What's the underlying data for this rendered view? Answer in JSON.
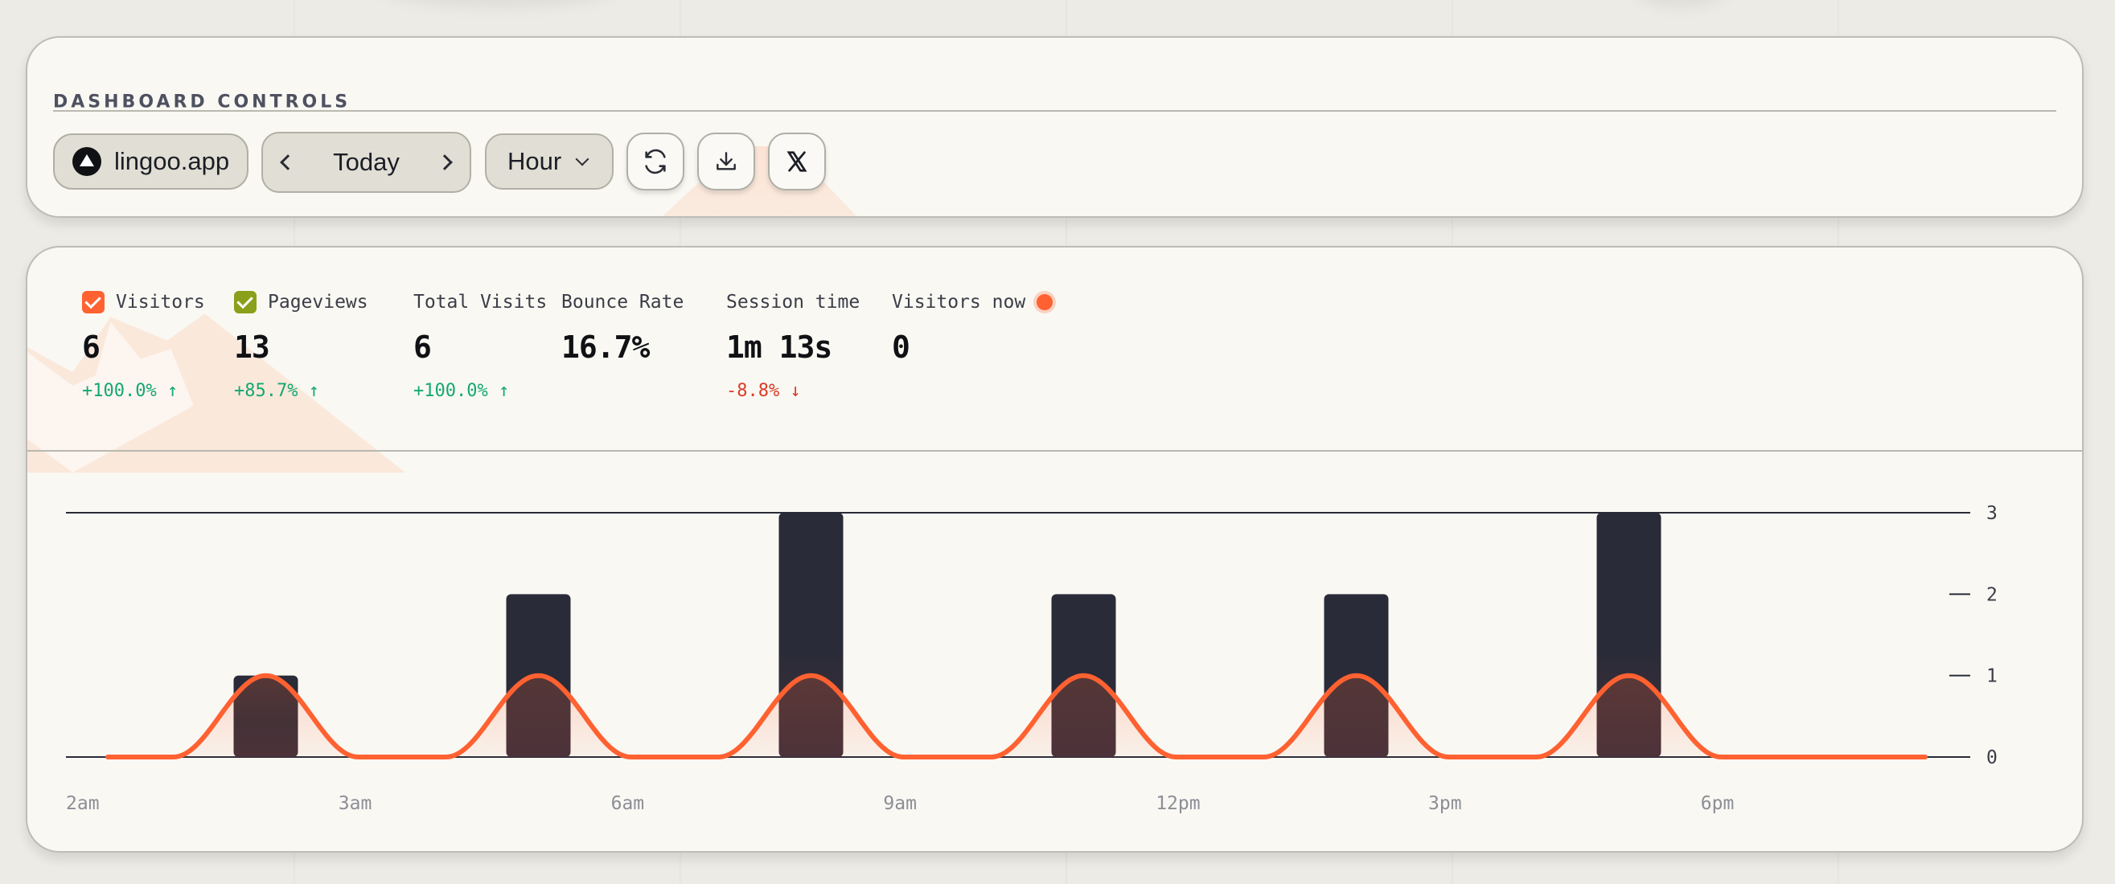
{
  "controls": {
    "title": "DASHBOARD CONTROLS",
    "site": "lingoo.app",
    "date_label": "Today",
    "interval": "Hour",
    "icons": {
      "site": "triangle-logo-icon",
      "prev": "chevron-left-icon",
      "next": "chevron-right-icon",
      "interval": "chevron-down-icon",
      "refresh": "refresh-icon",
      "download": "download-icon",
      "share": "x-logo-icon"
    }
  },
  "stats": [
    {
      "label": "Visitors",
      "value": "6",
      "delta": "+100.0%",
      "trend": "up",
      "checkbox": true,
      "checkbox_color": "#ff6131"
    },
    {
      "label": "Pageviews",
      "value": "13",
      "delta": "+85.7%",
      "trend": "up",
      "checkbox": true,
      "checkbox_color": "#8aa01a"
    },
    {
      "label": "Total Visits",
      "value": "6",
      "delta": "+100.0%",
      "trend": "up"
    },
    {
      "label": "Bounce Rate",
      "value": "16.7%"
    },
    {
      "label": "Session time",
      "value": "1m 13s",
      "delta": "-8.8%",
      "trend": "down"
    },
    {
      "label": "Visitors now",
      "value": "0",
      "live": true
    }
  ],
  "chart_data": {
    "type": "bar",
    "x_tick_labels": [
      "2am",
      "3am",
      "6am",
      "9am",
      "12pm",
      "3pm",
      "6pm"
    ],
    "y_ticks": [
      0,
      1,
      2,
      3
    ],
    "ylim": [
      0,
      3
    ],
    "grid": false,
    "y_axis_position": "right",
    "series": [
      {
        "type": "bar",
        "color": "#292b38",
        "points": [
          {
            "x": "3am",
            "y": 1
          },
          {
            "x": "6am",
            "y": 2
          },
          {
            "x": "9am",
            "y": 3
          },
          {
            "x": "12pm",
            "y": 2
          },
          {
            "x": "3pm",
            "y": 2
          },
          {
            "x": "6pm",
            "y": 3
          }
        ]
      },
      {
        "type": "area",
        "color": "#ff6131",
        "points": [
          {
            "x": "3am",
            "y": 1
          },
          {
            "x": "6am",
            "y": 1
          },
          {
            "x": "9am",
            "y": 1
          },
          {
            "x": "12pm",
            "y": 1
          },
          {
            "x": "3pm",
            "y": 1
          },
          {
            "x": "6pm",
            "y": 1
          }
        ]
      }
    ]
  }
}
